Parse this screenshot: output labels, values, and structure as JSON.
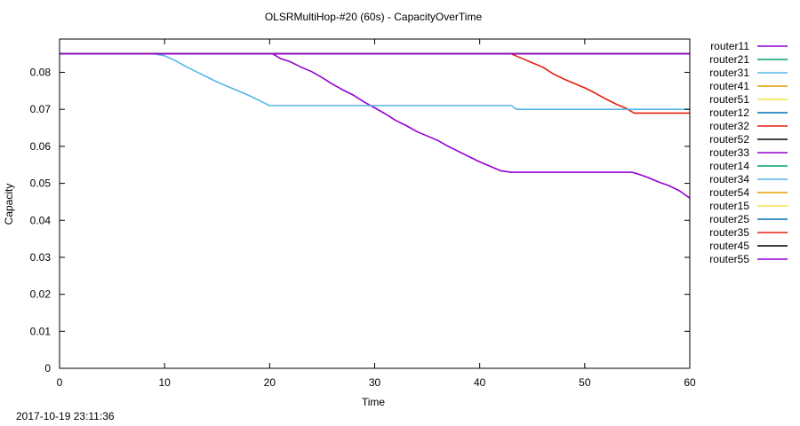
{
  "chart_data": {
    "type": "line",
    "title": "OLSRMultiHop-#20 (60s) - CapacityOverTime",
    "xlabel": "Time",
    "ylabel": "Capacity",
    "xlim": [
      0,
      60
    ],
    "ylim": [
      0,
      0.089
    ],
    "x_ticks": [
      0,
      10,
      20,
      30,
      40,
      50,
      60
    ],
    "x_tick_labels": [
      "0",
      "10",
      "20",
      "30",
      "40",
      "50",
      "60"
    ],
    "y_ticks": [
      0,
      0.01,
      0.02,
      0.03,
      0.04,
      0.05,
      0.06,
      0.07,
      0.08
    ],
    "y_tick_labels": [
      "0",
      "0.01",
      "0.02",
      "0.03",
      "0.04",
      "0.05",
      "0.06",
      "0.07",
      "0.08"
    ],
    "grid": false,
    "legend_position": "outside-right",
    "series": [
      {
        "name": "router11",
        "color": "#9400d3",
        "x": [
          0,
          60
        ],
        "y": [
          0.085,
          0.085
        ]
      },
      {
        "name": "router21",
        "color": "#009e73",
        "x": [
          0,
          60
        ],
        "y": [
          0.085,
          0.085
        ]
      },
      {
        "name": "router31",
        "color": "#56b4e9",
        "x": [
          0,
          60
        ],
        "y": [
          0.085,
          0.085
        ]
      },
      {
        "name": "router41",
        "color": "#e69f00",
        "x": [
          0,
          60
        ],
        "y": [
          0.085,
          0.085
        ]
      },
      {
        "name": "router51",
        "color": "#f0e442",
        "x": [
          0,
          60
        ],
        "y": [
          0.085,
          0.085
        ]
      },
      {
        "name": "router12",
        "color": "#0072b2",
        "x": [
          0,
          60
        ],
        "y": [
          0.085,
          0.085
        ]
      },
      {
        "name": "router32",
        "color": "#e51e10",
        "x": [
          0,
          43,
          44,
          45,
          46,
          47,
          48,
          49,
          50,
          51,
          52,
          53,
          54,
          54.7,
          60
        ],
        "y": [
          0.085,
          0.085,
          0.0838,
          0.0826,
          0.0814,
          0.0796,
          0.0782,
          0.077,
          0.0758,
          0.0744,
          0.0728,
          0.0714,
          0.0702,
          0.069,
          0.069
        ]
      },
      {
        "name": "router52",
        "color": "#000000",
        "x": [
          0,
          60
        ],
        "y": [
          0.085,
          0.085
        ]
      },
      {
        "name": "router33",
        "color": "#9400d3",
        "x": [
          0,
          20.3,
          21,
          22,
          23,
          24,
          25,
          26,
          27,
          28,
          29,
          30,
          31,
          32,
          33,
          34,
          35,
          36,
          37,
          38,
          39,
          40,
          41,
          42,
          43,
          54.5,
          55,
          56,
          57,
          58,
          59,
          60
        ],
        "y": [
          0.085,
          0.085,
          0.0838,
          0.0828,
          0.0814,
          0.0802,
          0.0786,
          0.0768,
          0.0752,
          0.0738,
          0.072,
          0.0704,
          0.0688,
          0.067,
          0.0656,
          0.064,
          0.0628,
          0.0616,
          0.06,
          0.0586,
          0.0572,
          0.0558,
          0.0546,
          0.0534,
          0.053,
          0.053,
          0.0526,
          0.0516,
          0.0504,
          0.0494,
          0.048,
          0.046
        ]
      },
      {
        "name": "router14",
        "color": "#009e73",
        "x": [
          0,
          60
        ],
        "y": [
          0.085,
          0.085
        ]
      },
      {
        "name": "router34",
        "color": "#56b4e9",
        "x": [
          0,
          9,
          10,
          11,
          12,
          13,
          14,
          15,
          16,
          17,
          18,
          19,
          20,
          43,
          43.5,
          60
        ],
        "y": [
          0.085,
          0.085,
          0.0845,
          0.0832,
          0.0816,
          0.0802,
          0.0788,
          0.0774,
          0.0762,
          0.075,
          0.0738,
          0.0724,
          0.071,
          0.071,
          0.07,
          0.07
        ]
      },
      {
        "name": "router54",
        "color": "#e69f00",
        "x": [
          0,
          60
        ],
        "y": [
          0.085,
          0.085
        ]
      },
      {
        "name": "router15",
        "color": "#f0e442",
        "x": [
          0,
          60
        ],
        "y": [
          0.085,
          0.085
        ]
      },
      {
        "name": "router25",
        "color": "#0072b2",
        "x": [
          0,
          60
        ],
        "y": [
          0.085,
          0.085
        ]
      },
      {
        "name": "router35",
        "color": "#e51e10",
        "x": [
          0,
          60
        ],
        "y": [
          0.085,
          0.085
        ]
      },
      {
        "name": "router45",
        "color": "#000000",
        "x": [
          0,
          60
        ],
        "y": [
          0.085,
          0.085
        ]
      },
      {
        "name": "router55",
        "color": "#9400d3",
        "x": [
          0,
          60
        ],
        "y": [
          0.085,
          0.085
        ]
      }
    ]
  },
  "footer": {
    "timestamp": "2017-10-19 23:11:36"
  }
}
